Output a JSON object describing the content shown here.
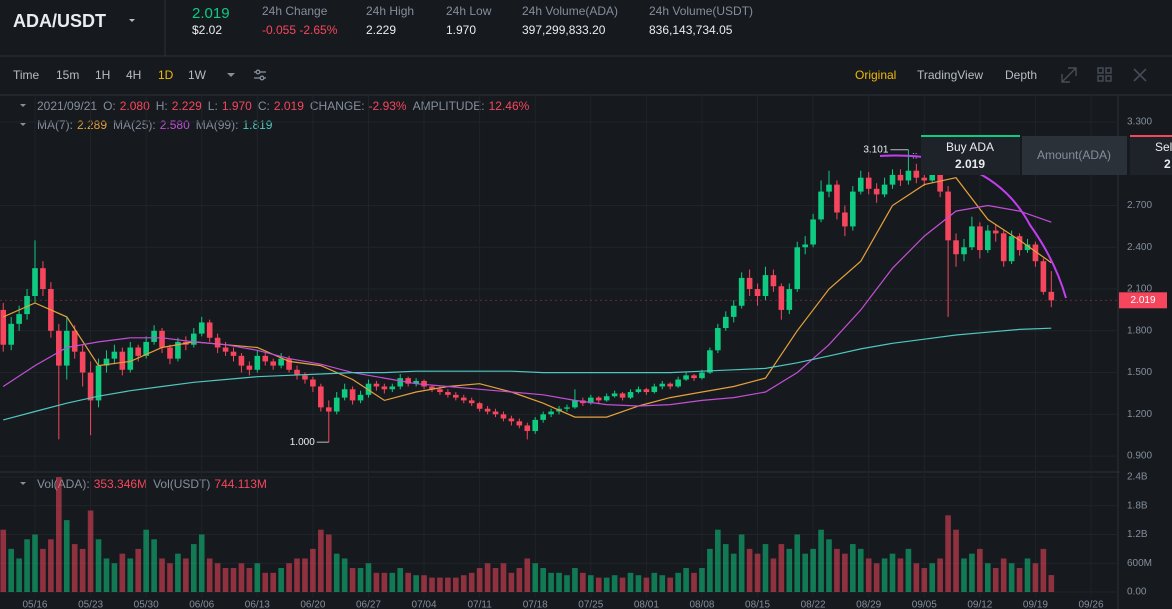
{
  "header": {
    "pair": "ADA/USDT",
    "last": "2.019",
    "last_usd": "$2.02",
    "stats": [
      {
        "label": "24h Change",
        "value": "-0.055 -2.65%"
      },
      {
        "label": "24h High",
        "value": "2.229"
      },
      {
        "label": "24h Low",
        "value": "1.970"
      },
      {
        "label": "24h Volume(ADA)",
        "value": "397,299,833.20"
      },
      {
        "label": "24h Volume(USDT)",
        "value": "836,143,734.05"
      }
    ]
  },
  "toolbar": {
    "intervals": [
      "Time",
      "15m",
      "1H",
      "4H",
      "1D",
      "1W"
    ],
    "views": [
      "Original",
      "TradingView",
      "Depth"
    ]
  },
  "info": {
    "date": "2021/09/21",
    "items": [
      {
        "label": "O:",
        "value": "2.080"
      },
      {
        "label": "H:",
        "value": "2.229"
      },
      {
        "label": "L:",
        "value": "1.970"
      },
      {
        "label": "C:",
        "value": "2.019"
      },
      {
        "label": "CHANGE:",
        "value": "-2.93%"
      },
      {
        "label": "AMPLITUDE:",
        "value": "12.46%"
      }
    ]
  },
  "vol_legend": [
    {
      "label": "Vol(ADA):",
      "value": "353.346M"
    },
    {
      "label": "Vol(USDT)",
      "value": "744.113M"
    }
  ],
  "order_panel": {
    "buy": "Buy ADA",
    "buy_price": "2.019",
    "amount": "Amount(ADA)",
    "sell": "Sel",
    "sell_price": "2"
  },
  "chart_data": {
    "type": "candlestick",
    "up_color": "#0ecb81",
    "down_color": "#f6465d",
    "xlim": [
      -0.408,
      139.39
    ],
    "ylim": [
      0.8,
      3.494
    ],
    "yticks": [
      {
        "value": 3.3,
        "label": "3.300"
      },
      {
        "value": 2.7,
        "label": "2.700"
      },
      {
        "value": 2.4,
        "label": "2.400"
      },
      {
        "value": 2.1,
        "label": "2.100"
      },
      {
        "value": 1.8,
        "label": "1.800"
      },
      {
        "value": 1.5,
        "label": "1.500"
      },
      {
        "value": 1.2,
        "label": "1.200"
      },
      {
        "value": 0.9,
        "label": "0.900"
      }
    ],
    "xticks": [
      {
        "value": 4,
        "label": "05/16"
      },
      {
        "value": 11,
        "label": "05/23"
      },
      {
        "value": 18,
        "label": "05/30"
      },
      {
        "value": 25,
        "label": "06/06"
      },
      {
        "value": 32,
        "label": "06/13"
      },
      {
        "value": 39,
        "label": "06/20"
      },
      {
        "value": 46,
        "label": "06/27"
      },
      {
        "value": 53,
        "label": "07/04"
      },
      {
        "value": 60,
        "label": "07/11"
      },
      {
        "value": 67,
        "label": "07/18"
      },
      {
        "value": 74,
        "label": "07/25"
      },
      {
        "value": 81,
        "label": "08/01"
      },
      {
        "value": 88,
        "label": "08/08"
      },
      {
        "value": 95,
        "label": "08/15"
      },
      {
        "value": 102,
        "label": "08/22"
      },
      {
        "value": 109,
        "label": "08/29"
      },
      {
        "value": 116,
        "label": "09/05"
      },
      {
        "value": 123,
        "label": "09/12"
      },
      {
        "value": 130,
        "label": "09/19"
      },
      {
        "value": 137,
        "label": "09/26"
      }
    ],
    "candles": [
      [
        1.95,
        2.0,
        1.65,
        1.7
      ],
      [
        1.7,
        1.9,
        1.66,
        1.85
      ],
      [
        1.85,
        1.98,
        1.8,
        1.92
      ],
      [
        1.92,
        2.1,
        1.88,
        2.05
      ],
      [
        2.05,
        2.45,
        2.0,
        2.25
      ],
      [
        2.25,
        2.3,
        2.05,
        2.1
      ],
      [
        2.1,
        2.15,
        1.75,
        1.8
      ],
      [
        1.8,
        1.85,
        1.02,
        1.55
      ],
      [
        1.55,
        1.9,
        1.45,
        1.8
      ],
      [
        1.8,
        1.84,
        1.6,
        1.65
      ],
      [
        1.65,
        1.7,
        1.4,
        1.5
      ],
      [
        1.5,
        1.58,
        1.05,
        1.3
      ],
      [
        1.3,
        1.6,
        1.25,
        1.55
      ],
      [
        1.55,
        1.66,
        1.5,
        1.6
      ],
      [
        1.6,
        1.7,
        1.56,
        1.65
      ],
      [
        1.65,
        1.68,
        1.48,
        1.52
      ],
      [
        1.52,
        1.72,
        1.5,
        1.68
      ],
      [
        1.68,
        1.7,
        1.58,
        1.62
      ],
      [
        1.62,
        1.76,
        1.6,
        1.72
      ],
      [
        1.72,
        1.84,
        1.7,
        1.8
      ],
      [
        1.8,
        1.82,
        1.64,
        1.68
      ],
      [
        1.68,
        1.7,
        1.56,
        1.6
      ],
      [
        1.6,
        1.75,
        1.58,
        1.72
      ],
      [
        1.72,
        1.76,
        1.66,
        1.7
      ],
      [
        1.7,
        1.82,
        1.68,
        1.78
      ],
      [
        1.78,
        1.9,
        1.76,
        1.86
      ],
      [
        1.86,
        1.88,
        1.72,
        1.75
      ],
      [
        1.75,
        1.78,
        1.64,
        1.68
      ],
      [
        1.68,
        1.72,
        1.62,
        1.65
      ],
      [
        1.65,
        1.68,
        1.58,
        1.62
      ],
      [
        1.62,
        1.64,
        1.5,
        1.55
      ],
      [
        1.55,
        1.58,
        1.48,
        1.52
      ],
      [
        1.52,
        1.66,
        1.5,
        1.62
      ],
      [
        1.62,
        1.64,
        1.55,
        1.58
      ],
      [
        1.58,
        1.6,
        1.52,
        1.55
      ],
      [
        1.55,
        1.64,
        1.53,
        1.6
      ],
      [
        1.6,
        1.62,
        1.5,
        1.52
      ],
      [
        1.52,
        1.55,
        1.45,
        1.48
      ],
      [
        1.48,
        1.5,
        1.42,
        1.45
      ],
      [
        1.45,
        1.47,
        1.36,
        1.4
      ],
      [
        1.4,
        1.42,
        1.22,
        1.25
      ],
      [
        1.25,
        1.3,
        1.0,
        1.22
      ],
      [
        1.22,
        1.36,
        1.2,
        1.32
      ],
      [
        1.32,
        1.42,
        1.3,
        1.38
      ],
      [
        1.38,
        1.4,
        1.27,
        1.3
      ],
      [
        1.3,
        1.37,
        1.28,
        1.34
      ],
      [
        1.34,
        1.45,
        1.32,
        1.42
      ],
      [
        1.42,
        1.44,
        1.37,
        1.4
      ],
      [
        1.4,
        1.42,
        1.35,
        1.38
      ],
      [
        1.38,
        1.42,
        1.36,
        1.4
      ],
      [
        1.4,
        1.49,
        1.38,
        1.46
      ],
      [
        1.46,
        1.47,
        1.4,
        1.42
      ],
      [
        1.42,
        1.46,
        1.4,
        1.44
      ],
      [
        1.44,
        1.45,
        1.38,
        1.4
      ],
      [
        1.4,
        1.41,
        1.36,
        1.38
      ],
      [
        1.38,
        1.4,
        1.34,
        1.36
      ],
      [
        1.36,
        1.38,
        1.32,
        1.34
      ],
      [
        1.34,
        1.36,
        1.3,
        1.32
      ],
      [
        1.32,
        1.34,
        1.28,
        1.3
      ],
      [
        1.3,
        1.32,
        1.26,
        1.28
      ],
      [
        1.28,
        1.29,
        1.22,
        1.24
      ],
      [
        1.24,
        1.26,
        1.2,
        1.22
      ],
      [
        1.22,
        1.24,
        1.18,
        1.2
      ],
      [
        1.2,
        1.22,
        1.15,
        1.17
      ],
      [
        1.17,
        1.19,
        1.12,
        1.15
      ],
      [
        1.15,
        1.17,
        1.1,
        1.12
      ],
      [
        1.12,
        1.14,
        1.02,
        1.08
      ],
      [
        1.08,
        1.18,
        1.06,
        1.16
      ],
      [
        1.16,
        1.22,
        1.14,
        1.2
      ],
      [
        1.2,
        1.24,
        1.18,
        1.22
      ],
      [
        1.22,
        1.26,
        1.2,
        1.24
      ],
      [
        1.24,
        1.27,
        1.22,
        1.25
      ],
      [
        1.25,
        1.38,
        1.24,
        1.3
      ],
      [
        1.3,
        1.32,
        1.26,
        1.28
      ],
      [
        1.28,
        1.34,
        1.27,
        1.32
      ],
      [
        1.32,
        1.33,
        1.28,
        1.3
      ],
      [
        1.3,
        1.35,
        1.29,
        1.33
      ],
      [
        1.33,
        1.37,
        1.32,
        1.35
      ],
      [
        1.35,
        1.36,
        1.3,
        1.32
      ],
      [
        1.32,
        1.38,
        1.31,
        1.36
      ],
      [
        1.36,
        1.4,
        1.35,
        1.38
      ],
      [
        1.38,
        1.39,
        1.34,
        1.36
      ],
      [
        1.36,
        1.42,
        1.35,
        1.4
      ],
      [
        1.4,
        1.44,
        1.38,
        1.42
      ],
      [
        1.42,
        1.43,
        1.38,
        1.4
      ],
      [
        1.4,
        1.47,
        1.39,
        1.45
      ],
      [
        1.45,
        1.5,
        1.44,
        1.48
      ],
      [
        1.48,
        1.49,
        1.44,
        1.46
      ],
      [
        1.46,
        1.52,
        1.45,
        1.5
      ],
      [
        1.5,
        1.68,
        1.49,
        1.66
      ],
      [
        1.66,
        1.85,
        1.64,
        1.82
      ],
      [
        1.82,
        1.94,
        1.8,
        1.9
      ],
      [
        1.9,
        2.02,
        1.86,
        1.98
      ],
      [
        1.98,
        2.22,
        1.96,
        2.18
      ],
      [
        2.18,
        2.24,
        2.05,
        2.1
      ],
      [
        2.1,
        2.14,
        1.98,
        2.05
      ],
      [
        2.05,
        2.26,
        2.02,
        2.2
      ],
      [
        2.2,
        2.24,
        2.08,
        2.12
      ],
      [
        2.12,
        2.14,
        1.88,
        1.95
      ],
      [
        1.95,
        2.14,
        1.92,
        2.1
      ],
      [
        2.1,
        2.44,
        2.08,
        2.4
      ],
      [
        2.4,
        2.48,
        2.35,
        2.42
      ],
      [
        2.42,
        2.64,
        2.4,
        2.6
      ],
      [
        2.6,
        2.88,
        2.58,
        2.8
      ],
      [
        2.8,
        2.95,
        2.76,
        2.85
      ],
      [
        2.85,
        2.88,
        2.6,
        2.65
      ],
      [
        2.65,
        2.7,
        2.48,
        2.55
      ],
      [
        2.55,
        2.84,
        2.52,
        2.8
      ],
      [
        2.8,
        2.95,
        2.78,
        2.9
      ],
      [
        2.9,
        2.94,
        2.78,
        2.82
      ],
      [
        2.82,
        2.86,
        2.72,
        2.78
      ],
      [
        2.78,
        2.9,
        2.76,
        2.85
      ],
      [
        2.85,
        2.96,
        2.82,
        2.92
      ],
      [
        2.92,
        2.96,
        2.84,
        2.88
      ],
      [
        2.88,
        3.101,
        2.85,
        2.95
      ],
      [
        2.95,
        3.0,
        2.86,
        2.9
      ],
      [
        2.9,
        2.94,
        2.84,
        2.88
      ],
      [
        2.88,
        2.96,
        2.86,
        2.92
      ],
      [
        2.92,
        2.94,
        2.76,
        2.8
      ],
      [
        2.8,
        2.84,
        1.9,
        2.45
      ],
      [
        2.45,
        2.5,
        2.26,
        2.35
      ],
      [
        2.35,
        2.46,
        2.3,
        2.4
      ],
      [
        2.4,
        2.62,
        2.38,
        2.55
      ],
      [
        2.55,
        2.58,
        2.32,
        2.38
      ],
      [
        2.38,
        2.56,
        2.36,
        2.52
      ],
      [
        2.52,
        2.56,
        2.44,
        2.5
      ],
      [
        2.5,
        2.52,
        2.26,
        2.3
      ],
      [
        2.3,
        2.52,
        2.28,
        2.48
      ],
      [
        2.48,
        2.5,
        2.34,
        2.38
      ],
      [
        2.38,
        2.46,
        2.36,
        2.42
      ],
      [
        2.42,
        2.44,
        2.26,
        2.3
      ],
      [
        2.3,
        2.32,
        2.06,
        2.08
      ],
      [
        2.08,
        2.229,
        1.97,
        2.019
      ]
    ],
    "ma_x": [
      0,
      4,
      8,
      12,
      16,
      20,
      24,
      28,
      32,
      36,
      40,
      44,
      48,
      52,
      56,
      60,
      64,
      68,
      72,
      76,
      80,
      84,
      88,
      92,
      96,
      100,
      104,
      108,
      112,
      116,
      120,
      124,
      128,
      132
    ],
    "series": [
      {
        "name": "MA(7):",
        "value_label": "2.289",
        "color": "#e5a13b",
        "values": [
          1.9,
          2.0,
          1.9,
          1.55,
          1.58,
          1.68,
          1.72,
          1.7,
          1.68,
          1.58,
          1.55,
          1.45,
          1.3,
          1.36,
          1.4,
          1.42,
          1.36,
          1.28,
          1.18,
          1.18,
          1.26,
          1.32,
          1.36,
          1.4,
          1.46,
          1.8,
          2.1,
          2.3,
          2.7,
          2.85,
          2.9,
          2.6,
          2.45,
          2.289
        ]
      },
      {
        "name": "MA(25):",
        "value_label": "2.580",
        "color": "#c34fd6",
        "values": [
          1.4,
          1.55,
          1.68,
          1.72,
          1.75,
          1.75,
          1.72,
          1.7,
          1.66,
          1.6,
          1.56,
          1.5,
          1.46,
          1.42,
          1.4,
          1.38,
          1.36,
          1.34,
          1.3,
          1.27,
          1.26,
          1.27,
          1.3,
          1.32,
          1.36,
          1.5,
          1.7,
          1.95,
          2.25,
          2.48,
          2.66,
          2.7,
          2.66,
          2.58
        ]
      },
      {
        "name": "MA(99):",
        "value_label": "1.819",
        "color": "#4fc7c0",
        "values": [
          1.16,
          1.22,
          1.28,
          1.33,
          1.37,
          1.4,
          1.43,
          1.45,
          1.47,
          1.48,
          1.49,
          1.5,
          1.5,
          1.51,
          1.51,
          1.51,
          1.51,
          1.5,
          1.5,
          1.5,
          1.5,
          1.5,
          1.51,
          1.52,
          1.53,
          1.57,
          1.62,
          1.67,
          1.71,
          1.74,
          1.77,
          1.79,
          1.81,
          1.819
        ]
      }
    ],
    "volume": {
      "ylim": [
        0,
        2400
      ],
      "yticks": [
        {
          "value": 0,
          "label": "0.00"
        },
        {
          "value": 600,
          "label": "600M"
        },
        {
          "value": 1200,
          "label": "1.2B"
        },
        {
          "value": 1800,
          "label": "1.8B"
        },
        {
          "value": 2400,
          "label": "2.4B"
        }
      ],
      "values": [
        1300,
        900,
        700,
        1100,
        1200,
        900,
        1100,
        2400,
        1500,
        1000,
        900,
        1700,
        1100,
        700,
        600,
        800,
        700,
        900,
        1300,
        1100,
        700,
        600,
        800,
        700,
        1000,
        1200,
        700,
        600,
        500,
        500,
        600,
        500,
        600,
        400,
        400,
        500,
        600,
        700,
        700,
        900,
        1300,
        1200,
        800,
        700,
        500,
        500,
        600,
        400,
        400,
        400,
        500,
        400,
        350,
        350,
        300,
        300,
        300,
        300,
        350,
        400,
        500,
        600,
        500,
        600,
        400,
        500,
        700,
        600,
        500,
        400,
        400,
        350,
        500,
        400,
        350,
        300,
        300,
        350,
        300,
        400,
        350,
        300,
        400,
        350,
        300,
        400,
        500,
        400,
        500,
        900,
        1300,
        1000,
        800,
        1200,
        900,
        800,
        1000,
        700,
        1000,
        900,
        1200,
        800,
        900,
        1300,
        1100,
        900,
        800,
        1000,
        900,
        700,
        600,
        700,
        800,
        700,
        900,
        600,
        500,
        600,
        700,
        1600,
        1300,
        700,
        800,
        900,
        600,
        500,
        700,
        600,
        500,
        700,
        600,
        900,
        353.346
      ]
    },
    "annotations": {
      "high": {
        "label": "3.101",
        "value": 3.101
      },
      "low": {
        "label": "1.000",
        "value": 1.0
      }
    },
    "last_price_label": "2.019"
  }
}
